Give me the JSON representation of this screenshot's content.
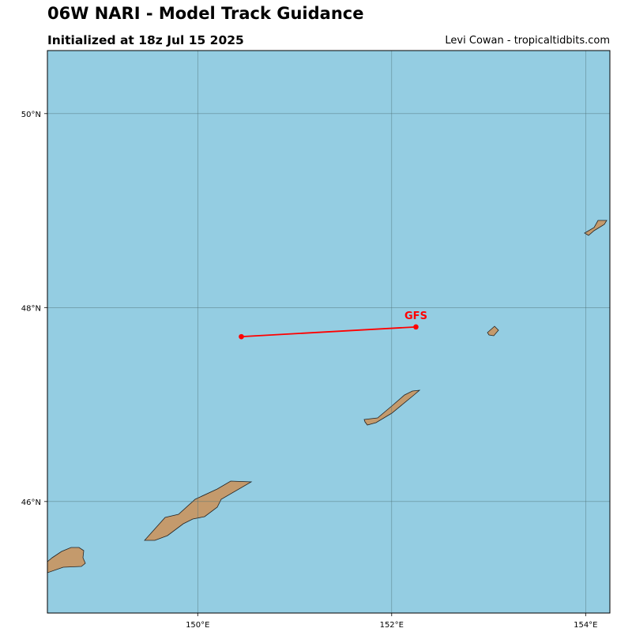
{
  "header": {
    "title": "06W NARI - Model Track Guidance",
    "subtitle": "Initialized at 18z Jul 15 2025",
    "credit": "Levi Cowan - tropicaltidbits.com"
  },
  "colors": {
    "ocean": "#94cde2",
    "land": "#c49a6c",
    "grid": "#4d6f73",
    "track": "#ff0000"
  },
  "map": {
    "lon_range": [
      148.45,
      154.25
    ],
    "lat_range": [
      44.85,
      50.65
    ],
    "lon_ticks": [
      {
        "value": 150,
        "label": "150°E"
      },
      {
        "value": 152,
        "label": "152°E"
      },
      {
        "value": 154,
        "label": "154°E"
      }
    ],
    "lat_ticks": [
      {
        "value": 50,
        "label": "50°N"
      },
      {
        "value": 48,
        "label": "48°N"
      },
      {
        "value": 46,
        "label": "46°N"
      }
    ],
    "grid": true
  },
  "chart_data": {
    "type": "scatter",
    "series": [
      {
        "name": "GFS",
        "color": "#ff0000",
        "points": [
          {
            "lon": 150.45,
            "lat": 47.7
          },
          {
            "lon": 152.25,
            "lat": 47.8
          }
        ]
      }
    ]
  }
}
